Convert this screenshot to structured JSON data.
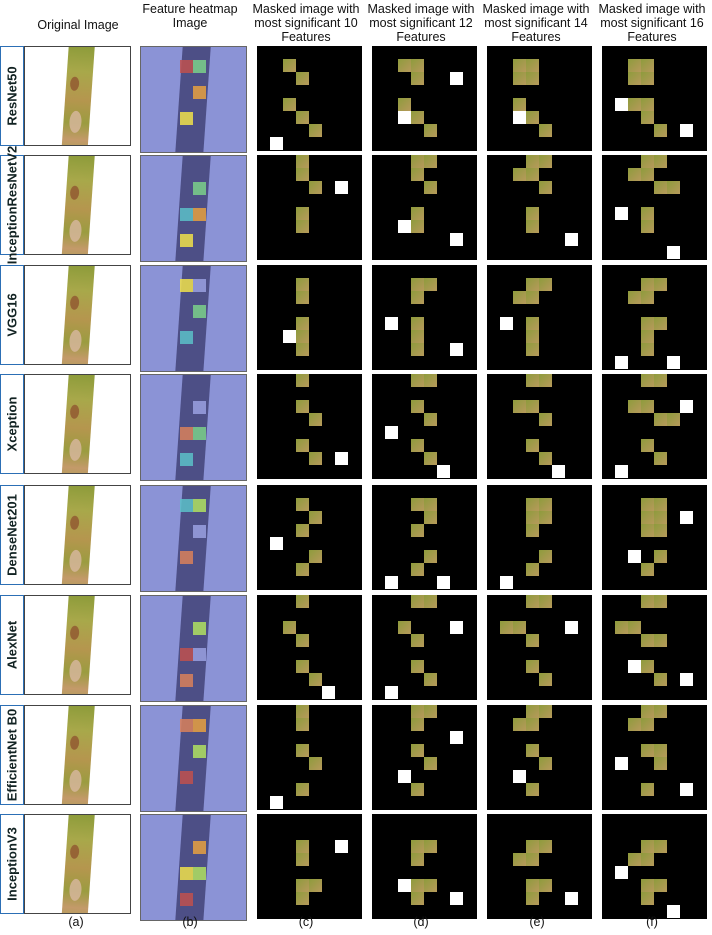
{
  "headers": {
    "a": "Original Image",
    "b": "Feature heatmap Image",
    "c": "Masked image with most significant 10 Features",
    "d": "Masked image with most significant 12 Features",
    "e": "Masked image with most significant 14 Features",
    "f": "Masked image with most significant 16 Features"
  },
  "rows": [
    {
      "label": "ResNet50"
    },
    {
      "label": "InceptionResNetV2"
    },
    {
      "label": "VGG16"
    },
    {
      "label": "Xception"
    },
    {
      "label": "DenseNet201"
    },
    {
      "label": "AlexNet"
    },
    {
      "label": "EfficientNet B0"
    },
    {
      "label": "InceptionV3"
    }
  ],
  "captions": [
    "(a)",
    "(b)",
    "(c)",
    "(d)",
    "(e)",
    "(f)"
  ],
  "colors": {
    "heatmap_base": "#8b93d6",
    "label_border": "#2c6fb5",
    "mask": "#000000"
  }
}
